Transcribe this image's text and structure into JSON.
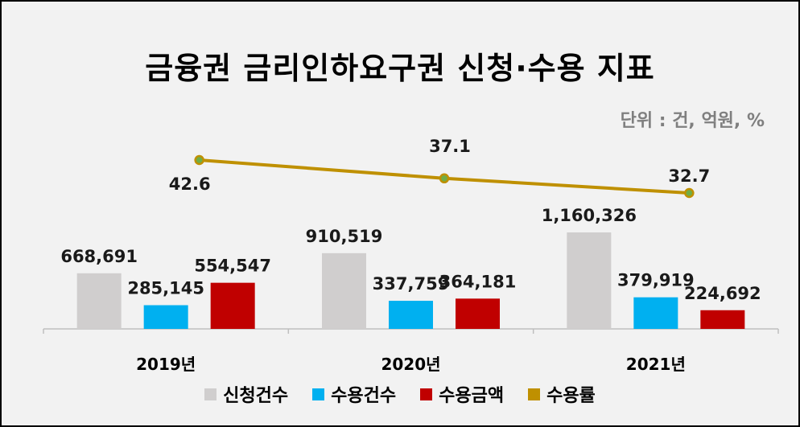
{
  "chart_data": {
    "type": "bar",
    "title": "금융권 금리인하요구권 신청·수용 지표",
    "unit_note": "단위 : 건, 억원, %",
    "categories": [
      "2019년",
      "2020년",
      "2021년"
    ],
    "series": [
      {
        "name": "신청건수",
        "kind": "bar",
        "color": "#d0cece",
        "values": [
          668691,
          910519,
          1160326
        ],
        "labels": [
          "668,691",
          "910,519",
          "1,160,326"
        ]
      },
      {
        "name": "수용건수",
        "kind": "bar",
        "color": "#00b0f0",
        "values": [
          285145,
          337759,
          379919
        ],
        "labels": [
          "285,145",
          "337,759",
          "379,919"
        ]
      },
      {
        "name": "수용금액",
        "kind": "bar",
        "color": "#c00000",
        "values": [
          554547,
          364181,
          224692
        ],
        "labels": [
          "554,547",
          "364,181",
          "224,692"
        ]
      },
      {
        "name": "수용률",
        "kind": "line",
        "color": "#bf9000",
        "marker_color": "#70ad47",
        "values": [
          42.6,
          37.1,
          32.7
        ],
        "labels": [
          "42.6",
          "37.1",
          "32.7"
        ]
      }
    ],
    "legend_position": "bottom",
    "grid": false
  }
}
